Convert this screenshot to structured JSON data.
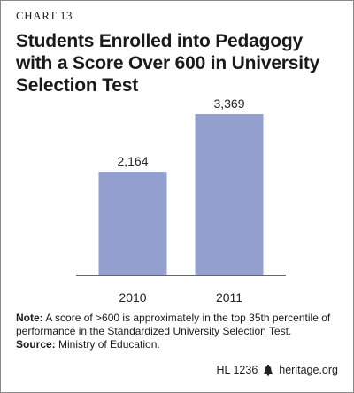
{
  "header": {
    "chart_number": "CHART 13",
    "title": "Students Enrolled into Pedagogy\nwith a Score Over 600 in University\nSelection Test"
  },
  "chart_data": {
    "type": "bar",
    "categories": [
      "2010",
      "2011"
    ],
    "values": [
      2164,
      3369
    ],
    "value_labels": [
      "2,164",
      "3,369"
    ],
    "ylim": [
      0,
      3369
    ],
    "grid": false,
    "bar_color": "#939fcf"
  },
  "note": {
    "note_label": "Note:",
    "note_text": " A score of >600 is approximately in the top 35th percentile of performance in the Standardized University Selection Test.",
    "source_label": "Source:",
    "source_text": " Ministry of Education."
  },
  "footer": {
    "code": "HL 1236",
    "site": "heritage.org",
    "icon": "liberty-bell-icon"
  }
}
